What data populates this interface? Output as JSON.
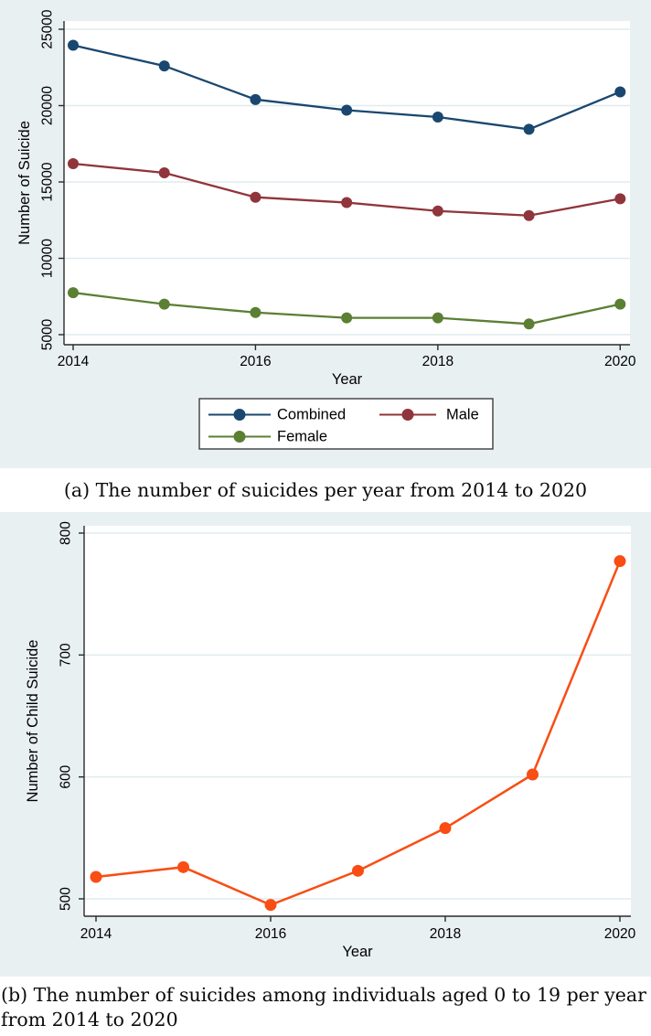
{
  "figure": {
    "panel_a": {
      "caption": "(a) The number of suicides per year from 2014 to 2020"
    },
    "panel_b": {
      "caption": "(b) The number of suicides among individuals aged 0 to 19 per year from 2014 to 2020"
    }
  },
  "colors": {
    "panel_background": "#e9f0f2",
    "plot_background": "#ffffff",
    "gridline": "#dfebef",
    "axis": "#2a2a2a",
    "text": "#000000",
    "legend_border": "#3c3c3c",
    "legend_background": "#ffffff"
  },
  "chart_data": [
    {
      "type": "line",
      "title": "",
      "xlabel": "Year",
      "ylabel": "Number of Suicide",
      "x": [
        2014,
        2015,
        2016,
        2017,
        2018,
        2019,
        2020
      ],
      "xticks": [
        2014,
        2016,
        2018,
        2020
      ],
      "yticks": [
        5000,
        10000,
        15000,
        20000,
        25000
      ],
      "ylim": [
        4500,
        25600
      ],
      "grid": true,
      "legend_position": "bottom",
      "series": [
        {
          "name": "Combined",
          "color": "#1a476f",
          "values": [
            23950,
            22600,
            20400,
            19700,
            19250,
            18450,
            20900
          ]
        },
        {
          "name": "Male",
          "color": "#90353b",
          "values": [
            16200,
            15600,
            14000,
            13650,
            13100,
            12800,
            13900
          ]
        },
        {
          "name": "Female",
          "color": "#5b7f33",
          "values": [
            7750,
            7000,
            6450,
            6100,
            6100,
            5700,
            7000
          ]
        }
      ]
    },
    {
      "type": "line",
      "title": "",
      "xlabel": "Year",
      "ylabel": "Number of Child Suicide",
      "x": [
        2014,
        2015,
        2016,
        2017,
        2018,
        2019,
        2020
      ],
      "xticks": [
        2014,
        2016,
        2018,
        2020
      ],
      "yticks": [
        500,
        600,
        700,
        800
      ],
      "ylim": [
        488,
        815
      ],
      "grid": true,
      "legend_position": "none",
      "series": [
        {
          "name": "Child",
          "color": "#f94d13",
          "values": [
            518,
            526,
            495,
            523,
            558,
            602,
            777
          ]
        }
      ]
    }
  ]
}
